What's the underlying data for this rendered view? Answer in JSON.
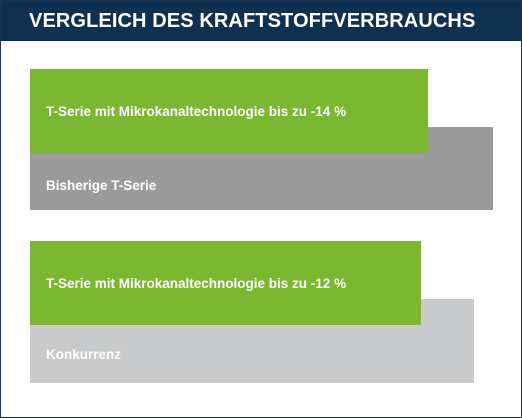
{
  "header": {
    "title": "VERGLEICH DES KRAFTSTOFFVERBRAUCHS"
  },
  "colors": {
    "header_bg": "#10304f",
    "improved": "#7bb731",
    "reference_dark": "#9b9b9c",
    "reference_light": "#c9cacb",
    "text_on_bar": "#ffffff"
  },
  "chart_data": {
    "type": "bar",
    "orientation": "horizontal",
    "title": "VERGLEICH DES KRAFTSTOFFVERBRAUCHS",
    "groups": [
      {
        "reference": {
          "label": "Bisherige T-Serie",
          "value": 100
        },
        "improved": {
          "label": "T-Serie mit Mikrokanaltechnologie bis zu -14 %",
          "value": 86
        },
        "reference_color": "#9b9b9c",
        "improved_color": "#7bb731"
      },
      {
        "reference": {
          "label": "Konkurrenz",
          "value": 100
        },
        "improved": {
          "label": "T-Serie mit Mikrokanaltechnologie bis zu -12 %",
          "value": 88
        },
        "reference_color": "#c9cacb",
        "improved_color": "#7bb731"
      }
    ]
  }
}
